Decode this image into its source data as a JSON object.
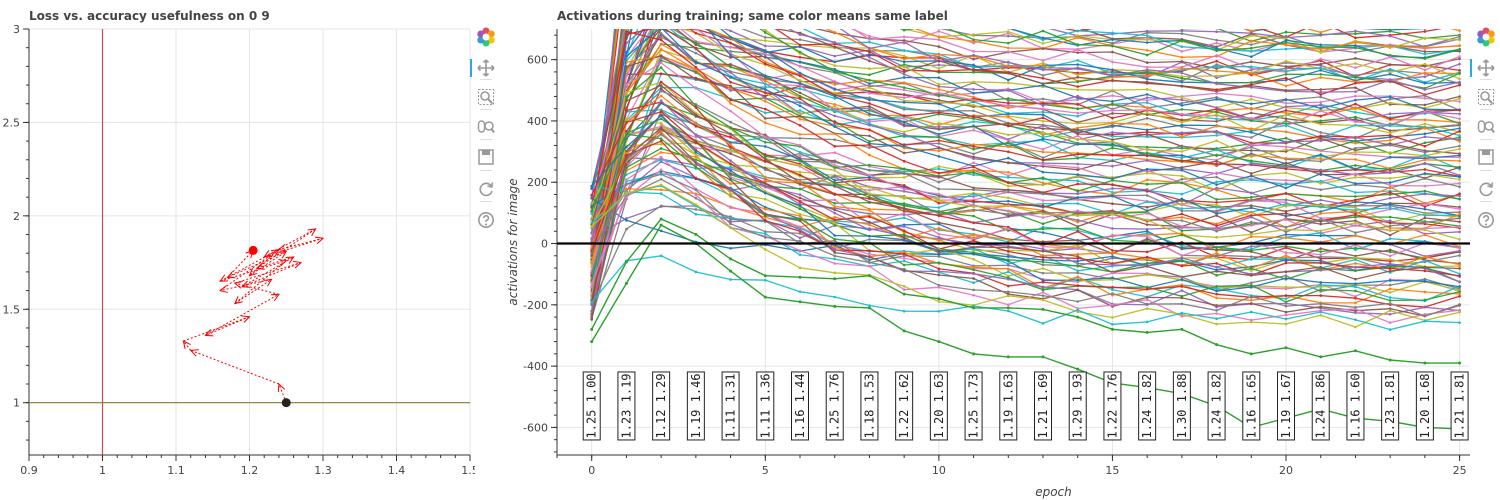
{
  "colors": {
    "arrow": "#ff0000",
    "vline": "#c44e52",
    "hline": "#8c7a2e",
    "end_point": "#ff0000",
    "start_point": "#222222",
    "zero_line": "#000000",
    "grid": "#e5e5e5",
    "palette": [
      "#1f77b4",
      "#ff7f0e",
      "#2ca02c",
      "#d62728",
      "#9467bd",
      "#8c564b",
      "#e377c2",
      "#7f7f7f",
      "#bcbd22",
      "#17becf"
    ]
  },
  "toolbar": {
    "icons": [
      "bokeh-logo-icon",
      "pan-icon",
      "box-zoom-icon",
      "wheel-zoom-icon",
      "save-icon",
      "reset-icon",
      "help-icon"
    ]
  },
  "chart_data": [
    {
      "type": "scatter",
      "title": "Loss vs. accuracy usefulness on 0 9",
      "xlabel": "",
      "ylabel": "",
      "xlim": [
        0.9,
        1.5
      ],
      "ylim": [
        0.72,
        3.0
      ],
      "x_ticks": [
        0.9,
        1,
        1.1,
        1.2,
        1.3,
        1.4,
        1.5
      ],
      "x_tick_labels": [
        "0.9",
        "1",
        "1.1",
        "1.2",
        "1.3",
        "1.4",
        "1.5"
      ],
      "y_ticks": [
        1,
        1.5,
        2,
        2.5,
        3
      ],
      "y_tick_labels": [
        "1",
        "1.5",
        "2",
        "2.5",
        "3"
      ],
      "vline_x": 1,
      "hline_y": 1,
      "start_point": {
        "x": 1.25,
        "y": 1.0
      },
      "end_point": {
        "x": 1.205,
        "y": 1.815
      },
      "path": [
        [
          1.25,
          1.0
        ],
        [
          1.24,
          1.1
        ],
        [
          1.12,
          1.28
        ],
        [
          1.11,
          1.33
        ],
        [
          1.2,
          1.46
        ],
        [
          1.14,
          1.36
        ],
        [
          1.24,
          1.58
        ],
        [
          1.18,
          1.64
        ],
        [
          1.27,
          1.75
        ],
        [
          1.19,
          1.62
        ],
        [
          1.26,
          1.78
        ],
        [
          1.21,
          1.72
        ],
        [
          1.29,
          1.93
        ],
        [
          1.22,
          1.78
        ],
        [
          1.3,
          1.88
        ],
        [
          1.24,
          1.82
        ],
        [
          1.16,
          1.65
        ],
        [
          1.25,
          1.76
        ],
        [
          1.18,
          1.53
        ],
        [
          1.23,
          1.66
        ],
        [
          1.16,
          1.6
        ],
        [
          1.24,
          1.82
        ],
        [
          1.2,
          1.68
        ],
        [
          1.25,
          1.81
        ],
        [
          1.17,
          1.67
        ],
        [
          1.205,
          1.815
        ]
      ]
    },
    {
      "type": "line",
      "title": "Activations during training; same color means same label",
      "xlabel": "epoch",
      "ylabel": "activations for image",
      "xlim": [
        -1,
        25.3
      ],
      "ylim": [
        -690,
        700
      ],
      "x_ticks": [
        0,
        5,
        10,
        15,
        20,
        25
      ],
      "x_tick_labels": [
        "0",
        "5",
        "10",
        "15",
        "20",
        "25"
      ],
      "y_ticks": [
        -600,
        -400,
        -200,
        0,
        200,
        400,
        600
      ],
      "y_tick_labels": [
        "-600",
        "-400",
        "-200",
        "0",
        "200",
        "400",
        "600"
      ],
      "x": [
        0,
        1,
        2,
        3,
        4,
        5,
        6,
        7,
        8,
        9,
        10,
        11,
        12,
        13,
        14,
        15,
        16,
        17,
        18,
        19,
        20,
        21,
        22,
        23,
        24,
        25
      ],
      "zero_line_y": 0,
      "series_count": 110,
      "highlight_series": [
        {
          "values": [
            -320,
            -130,
            60,
            0,
            -90,
            -175,
            -190,
            -205,
            -210,
            -285,
            -320,
            -360,
            -370,
            -370,
            -410,
            -455,
            -470,
            -490,
            -530,
            -600,
            -570,
            -540,
            -570,
            -580,
            -600,
            -605
          ]
        },
        {
          "values": [
            -280,
            -60,
            80,
            30,
            -50,
            -105,
            -110,
            -115,
            -105,
            -165,
            -180,
            -210,
            -210,
            -215,
            -240,
            -280,
            -290,
            -280,
            -330,
            -360,
            -340,
            -370,
            -350,
            -380,
            -390,
            -390
          ]
        }
      ],
      "epoch_labels": [
        {
          "epoch": 0,
          "a": "1.25",
          "b": "1.00"
        },
        {
          "epoch": 1,
          "a": "1.23",
          "b": "1.19"
        },
        {
          "epoch": 2,
          "a": "1.12",
          "b": "1.29"
        },
        {
          "epoch": 3,
          "a": "1.19",
          "b": "1.46"
        },
        {
          "epoch": 4,
          "a": "1.11",
          "b": "1.31"
        },
        {
          "epoch": 5,
          "a": "1.11",
          "b": "1.36"
        },
        {
          "epoch": 6,
          "a": "1.16",
          "b": "1.44"
        },
        {
          "epoch": 7,
          "a": "1.25",
          "b": "1.76"
        },
        {
          "epoch": 8,
          "a": "1.18",
          "b": "1.53"
        },
        {
          "epoch": 9,
          "a": "1.22",
          "b": "1.62"
        },
        {
          "epoch": 10,
          "a": "1.20",
          "b": "1.63"
        },
        {
          "epoch": 11,
          "a": "1.25",
          "b": "1.73"
        },
        {
          "epoch": 12,
          "a": "1.19",
          "b": "1.63"
        },
        {
          "epoch": 13,
          "a": "1.21",
          "b": "1.69"
        },
        {
          "epoch": 14,
          "a": "1.29",
          "b": "1.93"
        },
        {
          "epoch": 15,
          "a": "1.22",
          "b": "1.76"
        },
        {
          "epoch": 16,
          "a": "1.24",
          "b": "1.82"
        },
        {
          "epoch": 17,
          "a": "1.30",
          "b": "1.88"
        },
        {
          "epoch": 18,
          "a": "1.24",
          "b": "1.82"
        },
        {
          "epoch": 19,
          "a": "1.16",
          "b": "1.65"
        },
        {
          "epoch": 20,
          "a": "1.19",
          "b": "1.67"
        },
        {
          "epoch": 21,
          "a": "1.24",
          "b": "1.86"
        },
        {
          "epoch": 22,
          "a": "1.16",
          "b": "1.60"
        },
        {
          "epoch": 23,
          "a": "1.23",
          "b": "1.81"
        },
        {
          "epoch": 24,
          "a": "1.20",
          "b": "1.68"
        },
        {
          "epoch": 25,
          "a": "1.21",
          "b": "1.81"
        }
      ],
      "epoch_label_y": -530
    }
  ]
}
